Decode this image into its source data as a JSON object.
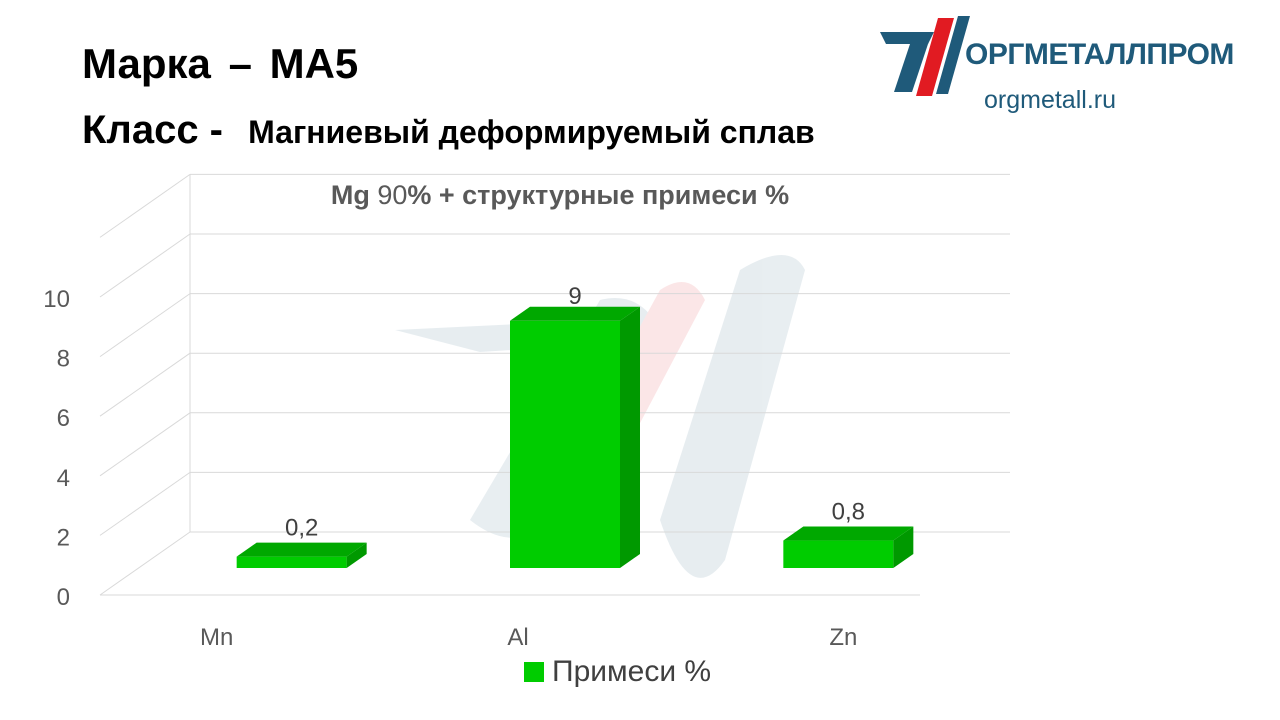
{
  "header": {
    "grade_label": "Марка",
    "grade_dash": "–",
    "grade_value": "МА5",
    "class_label": "Класс -",
    "class_value": "Магниевый деформируемый сплав"
  },
  "logo": {
    "name": "ОРГМЕТАЛЛПРОМ",
    "url": "orgmetall.ru"
  },
  "chart_title": {
    "part1": "Mg",
    "part2": "90",
    "part3": "% + структурные  примеси %"
  },
  "colors": {
    "bar_front": "#00cc00",
    "bar_side": "#009900",
    "bar_top": "#00a800",
    "logo_blue": "#1f5a7a",
    "logo_red": "#e11b22"
  },
  "chart_data": {
    "type": "bar",
    "style": "3d",
    "title": "Mg 90% + структурные  примеси %",
    "categories": [
      "Mn",
      "Al",
      "Zn"
    ],
    "series": [
      {
        "name": "Примеси %",
        "values": [
          0.2,
          9,
          0.8
        ]
      }
    ],
    "data_labels": [
      "0,2",
      "9",
      "0,8"
    ],
    "y_ticks": [
      "0",
      "2",
      "4",
      "6",
      "8",
      "10"
    ],
    "ylim": [
      0,
      10
    ],
    "grid": true,
    "legend": "bottom"
  }
}
